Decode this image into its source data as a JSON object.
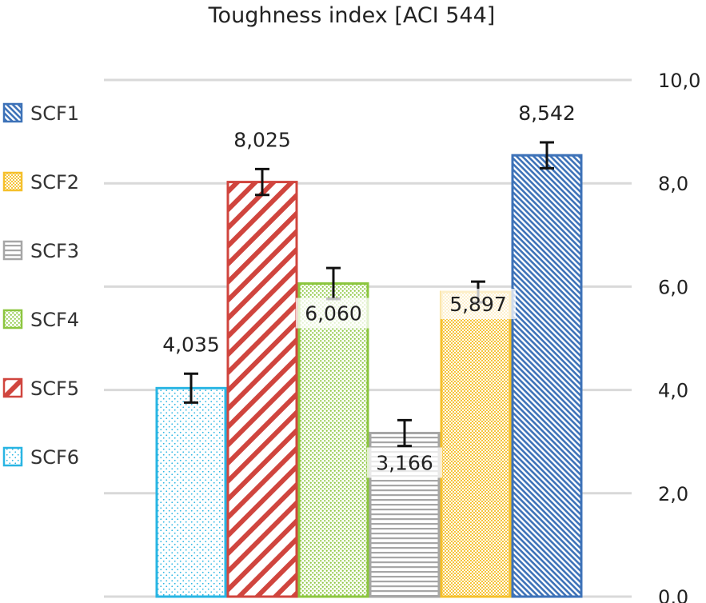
{
  "chart_data": {
    "type": "bar",
    "title": "Toughness index [ACI 544]",
    "ylim": [
      0,
      10
    ],
    "yticks": [
      "0,0",
      "2,0",
      "4,0",
      "6,0",
      "8,0",
      "10,0"
    ],
    "y_axis_side": "right",
    "grid": true,
    "legend_position": "left",
    "legend": [
      "SCF1",
      "SCF2",
      "SCF3",
      "SCF4",
      "SCF5",
      "SCF6"
    ],
    "series": [
      {
        "name": "SCF6",
        "values": [
          4.035
        ],
        "label": "4,035",
        "error": 0.28,
        "color": "#29b5e3",
        "pattern": "dots-light"
      },
      {
        "name": "SCF5",
        "values": [
          8.025
        ],
        "label": "8,025",
        "error": 0.25,
        "color": "#d0453e",
        "pattern": "diag-wide"
      },
      {
        "name": "SCF4",
        "values": [
          6.06
        ],
        "label": "6,060",
        "error": 0.3,
        "color": "#8cc63f",
        "pattern": "dots"
      },
      {
        "name": "SCF3",
        "values": [
          3.166
        ],
        "label": "3,166",
        "error": 0.25,
        "color": "#a6a6a6",
        "pattern": "horizontal"
      },
      {
        "name": "SCF2",
        "values": [
          5.897
        ],
        "label": "5,897",
        "error": 0.2,
        "color": "#f5c02b",
        "pattern": "dots-dense"
      },
      {
        "name": "SCF1",
        "values": [
          8.542
        ],
        "label": "8,542",
        "error": 0.25,
        "color": "#3d72b8",
        "pattern": "diag-fine"
      }
    ]
  }
}
